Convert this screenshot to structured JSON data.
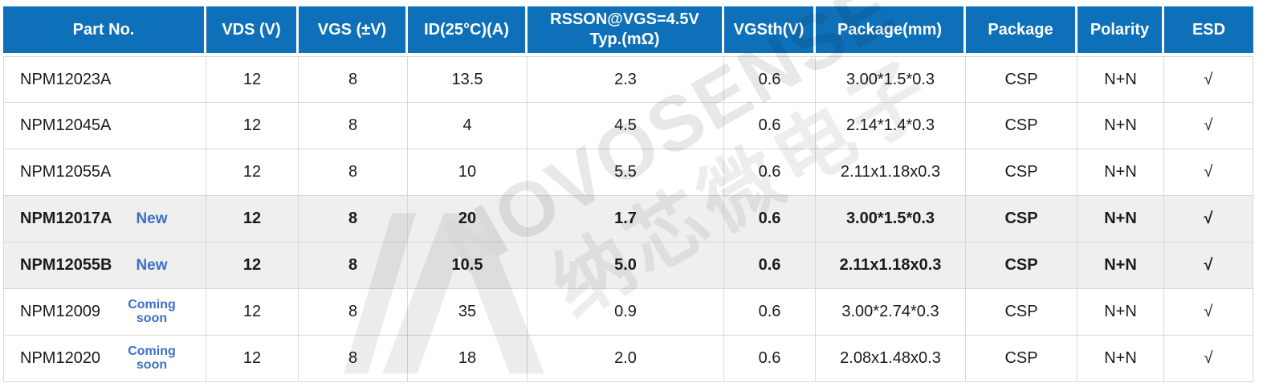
{
  "table": {
    "columns": [
      {
        "key": "part",
        "label": "Part No."
      },
      {
        "key": "vds",
        "label": "VDS (V)"
      },
      {
        "key": "vgs",
        "label": "VGS (±V)"
      },
      {
        "key": "id",
        "label": "ID(25°C)(A)"
      },
      {
        "key": "rsson",
        "label": "RSSON@VGS=4.5V\nTyp.(mΩ)"
      },
      {
        "key": "vgsth",
        "label": "VGSth(V)"
      },
      {
        "key": "pkgmm",
        "label": "Package(mm)"
      },
      {
        "key": "pkg",
        "label": "Package"
      },
      {
        "key": "polarity",
        "label": "Polarity"
      },
      {
        "key": "esd",
        "label": "ESD"
      }
    ],
    "rows": [
      {
        "part": "NPM12023A",
        "badge": "",
        "vds": "12",
        "vgs": "8",
        "id": "13.5",
        "rsson": "2.3",
        "vgsth": "0.6",
        "pkgmm": "3.00*1.5*0.3",
        "pkg": "CSP",
        "polarity": "N+N",
        "esd": "√",
        "highlight": false
      },
      {
        "part": "NPM12045A",
        "badge": "",
        "vds": "12",
        "vgs": "8",
        "id": "4",
        "rsson": "4.5",
        "vgsth": "0.6",
        "pkgmm": "2.14*1.4*0.3",
        "pkg": "CSP",
        "polarity": "N+N",
        "esd": "√",
        "highlight": false
      },
      {
        "part": "NPM12055A",
        "badge": "",
        "vds": "12",
        "vgs": "8",
        "id": "10",
        "rsson": "5.5",
        "vgsth": "0.6",
        "pkgmm": "2.11x1.18x0.3",
        "pkg": "CSP",
        "polarity": "N+N",
        "esd": "√",
        "highlight": false
      },
      {
        "part": "NPM12017A",
        "badge": "New",
        "vds": "12",
        "vgs": "8",
        "id": "20",
        "rsson": "1.7",
        "vgsth": "0.6",
        "pkgmm": "3.00*1.5*0.3",
        "pkg": "CSP",
        "polarity": "N+N",
        "esd": "√",
        "highlight": true
      },
      {
        "part": "NPM12055B",
        "badge": "New",
        "vds": "12",
        "vgs": "8",
        "id": "10.5",
        "rsson": "5.0",
        "vgsth": "0.6",
        "pkgmm": "2.11x1.18x0.3",
        "pkg": "CSP",
        "polarity": "N+N",
        "esd": "√",
        "highlight": true
      },
      {
        "part": "NPM12009",
        "badge": "Coming soon",
        "vds": "12",
        "vgs": "8",
        "id": "35",
        "rsson": "0.9",
        "vgsth": "0.6",
        "pkgmm": "3.00*2.74*0.3",
        "pkg": "CSP",
        "polarity": "N+N",
        "esd": "√",
        "highlight": false
      },
      {
        "part": "NPM12020",
        "badge": "Coming soon",
        "vds": "12",
        "vgs": "8",
        "id": "18",
        "rsson": "2.0",
        "vgsth": "0.6",
        "pkgmm": "2.08x1.48x0.3",
        "pkg": "CSP",
        "polarity": "N+N",
        "esd": "√",
        "highlight": false
      }
    ]
  },
  "watermark": {
    "brand": "NOVOSENSE",
    "brand_cn": "纳芯微电子"
  },
  "colors": {
    "header_bg": "#0E70B8",
    "badge_text": "#3E6FC9",
    "highlight_row_bg": "#EFEFEF",
    "grid_border": "#D8D8D8",
    "watermark_gray": "#E8E8E8"
  }
}
